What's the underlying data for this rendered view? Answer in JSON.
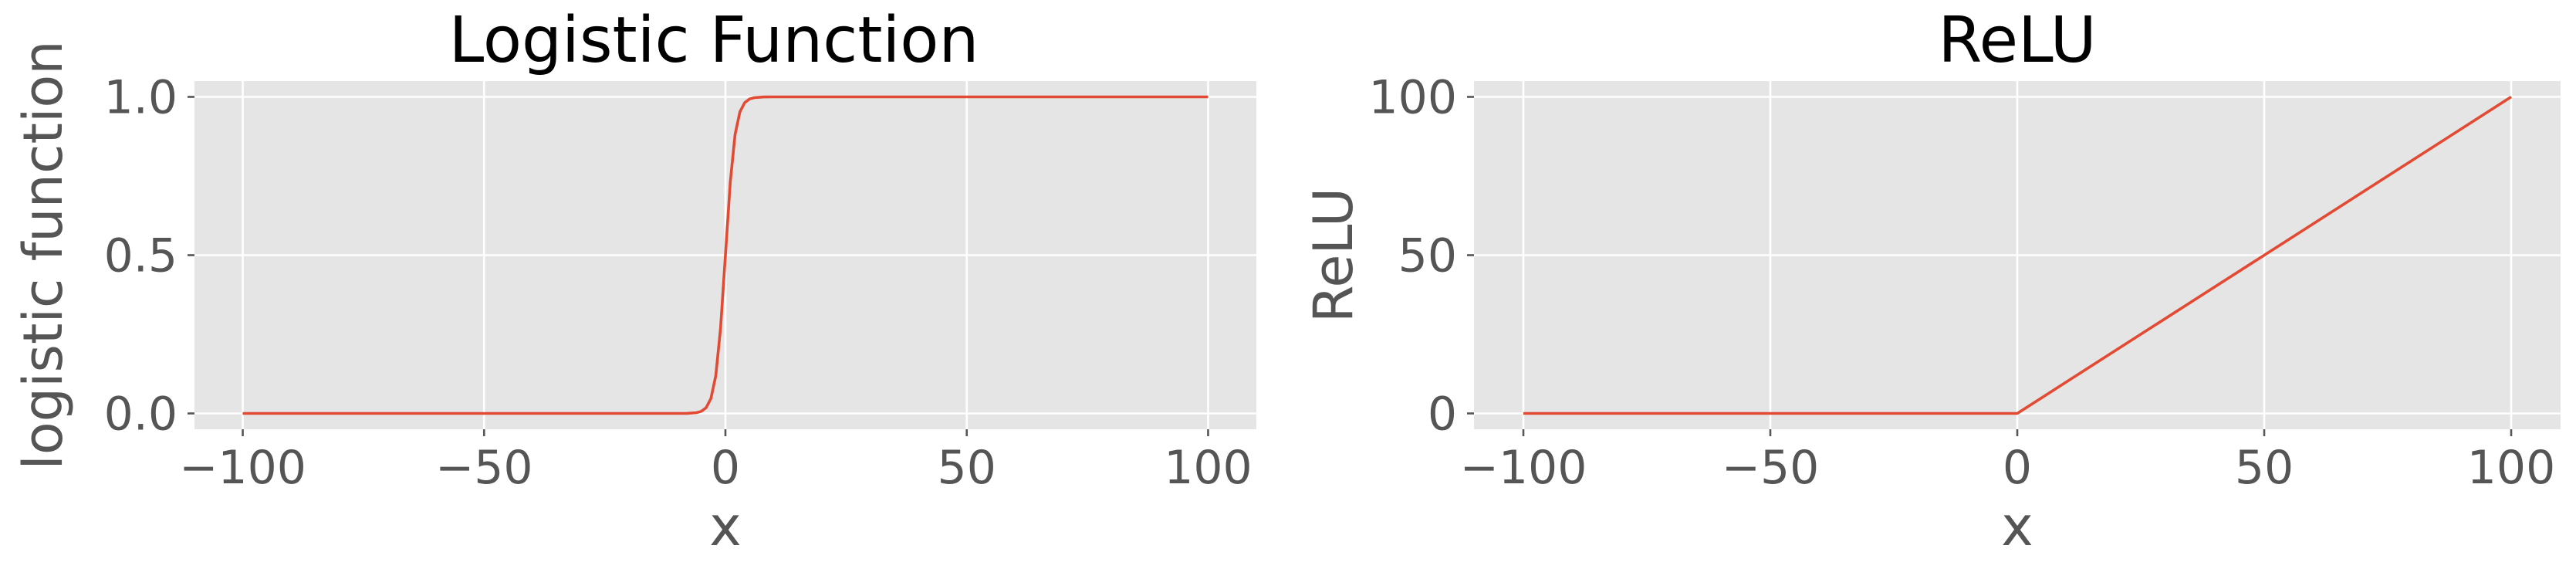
{
  "chart_data": [
    {
      "type": "line",
      "title": "Logistic Function",
      "xlabel": "x",
      "ylabel": "logistic function",
      "xlim": [
        -110,
        110
      ],
      "ylim": [
        -0.05,
        1.05
      ],
      "xticks": [
        -100,
        -50,
        0,
        50,
        100
      ],
      "xtick_labels": [
        "−100",
        "−50",
        "0",
        "50",
        "100"
      ],
      "yticks": [
        0.0,
        0.5,
        1.0
      ],
      "ytick_labels": [
        "0.0",
        "0.5",
        "1.0"
      ],
      "grid": true,
      "series": [
        {
          "color": "#e24a33",
          "x": [
            -100,
            -10,
            -8,
            -6,
            -5,
            -4,
            -3,
            -2,
            -1,
            0,
            1,
            2,
            3,
            4,
            5,
            6,
            8,
            10,
            100
          ],
          "y": [
            0.0,
            5e-05,
            0.0003,
            0.0025,
            0.0067,
            0.018,
            0.047,
            0.119,
            0.269,
            0.5,
            0.731,
            0.881,
            0.953,
            0.982,
            0.9933,
            0.9975,
            0.9997,
            0.99995,
            1.0
          ]
        }
      ]
    },
    {
      "type": "line",
      "title": "ReLU",
      "xlabel": "x",
      "ylabel": "ReLU",
      "xlim": [
        -110,
        110
      ],
      "ylim": [
        -5,
        105
      ],
      "xticks": [
        -100,
        -50,
        0,
        50,
        100
      ],
      "xtick_labels": [
        "−100",
        "−50",
        "0",
        "50",
        "100"
      ],
      "yticks": [
        0,
        50,
        100
      ],
      "ytick_labels": [
        "0",
        "50",
        "100"
      ],
      "grid": true,
      "series": [
        {
          "color": "#e24a33",
          "x": [
            -100,
            0,
            100
          ],
          "y": [
            0,
            0,
            100
          ]
        }
      ]
    }
  ]
}
